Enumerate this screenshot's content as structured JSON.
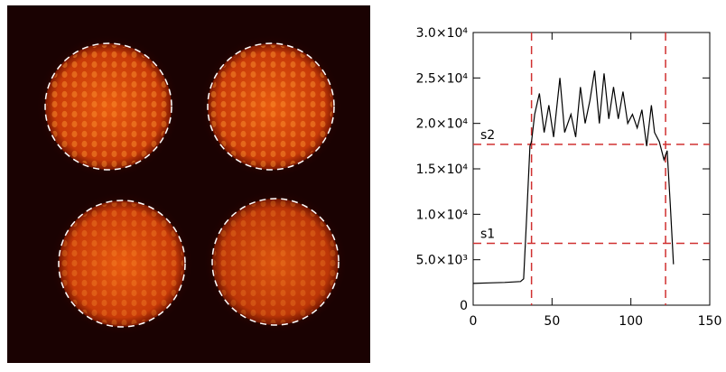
{
  "chart_data": {
    "type": "line",
    "x": [
      0,
      10,
      20,
      30,
      32,
      34,
      36,
      37,
      39,
      42,
      45,
      48,
      51,
      55,
      58,
      62,
      65,
      68,
      71,
      74,
      77,
      80,
      83,
      86,
      89,
      92,
      95,
      98,
      101,
      104,
      107,
      110,
      113,
      115,
      118,
      121,
      123,
      125,
      127
    ],
    "series": [
      {
        "color": "#000000",
        "values": [
          2400,
          2450,
          2500,
          2600,
          2900,
          10000,
          17500,
          18000,
          21000,
          23300,
          19000,
          22000,
          18500,
          25000,
          19000,
          21000,
          18500,
          24000,
          20000,
          22500,
          25800,
          20000,
          25500,
          20500,
          24000,
          20500,
          23500,
          20000,
          21000,
          19500,
          21500,
          17500,
          22000,
          19000,
          18000,
          16000,
          17000,
          11000,
          4500
        ]
      }
    ],
    "xlim": [
      0,
      150
    ],
    "xticks": [
      0,
      50,
      100,
      150
    ],
    "ylim": [
      0,
      30000
    ],
    "yticks": [
      0,
      {
        "value": 5000,
        "label": "5.0×10³"
      },
      {
        "value": 10000,
        "label": "1.0×10⁴"
      },
      {
        "value": 15000,
        "label": "1.5×10⁴"
      },
      {
        "value": 20000,
        "label": "2.0×10⁴"
      },
      {
        "value": 25000,
        "label": "2.5×10⁴"
      },
      {
        "value": 30000,
        "label": "3.0×10⁴"
      }
    ],
    "vlines": [
      37,
      122
    ],
    "hlines": [
      {
        "value": 6800,
        "label": "s1"
      },
      {
        "value": 17700,
        "label": "s2"
      }
    ],
    "ref_color": "#d03030"
  }
}
